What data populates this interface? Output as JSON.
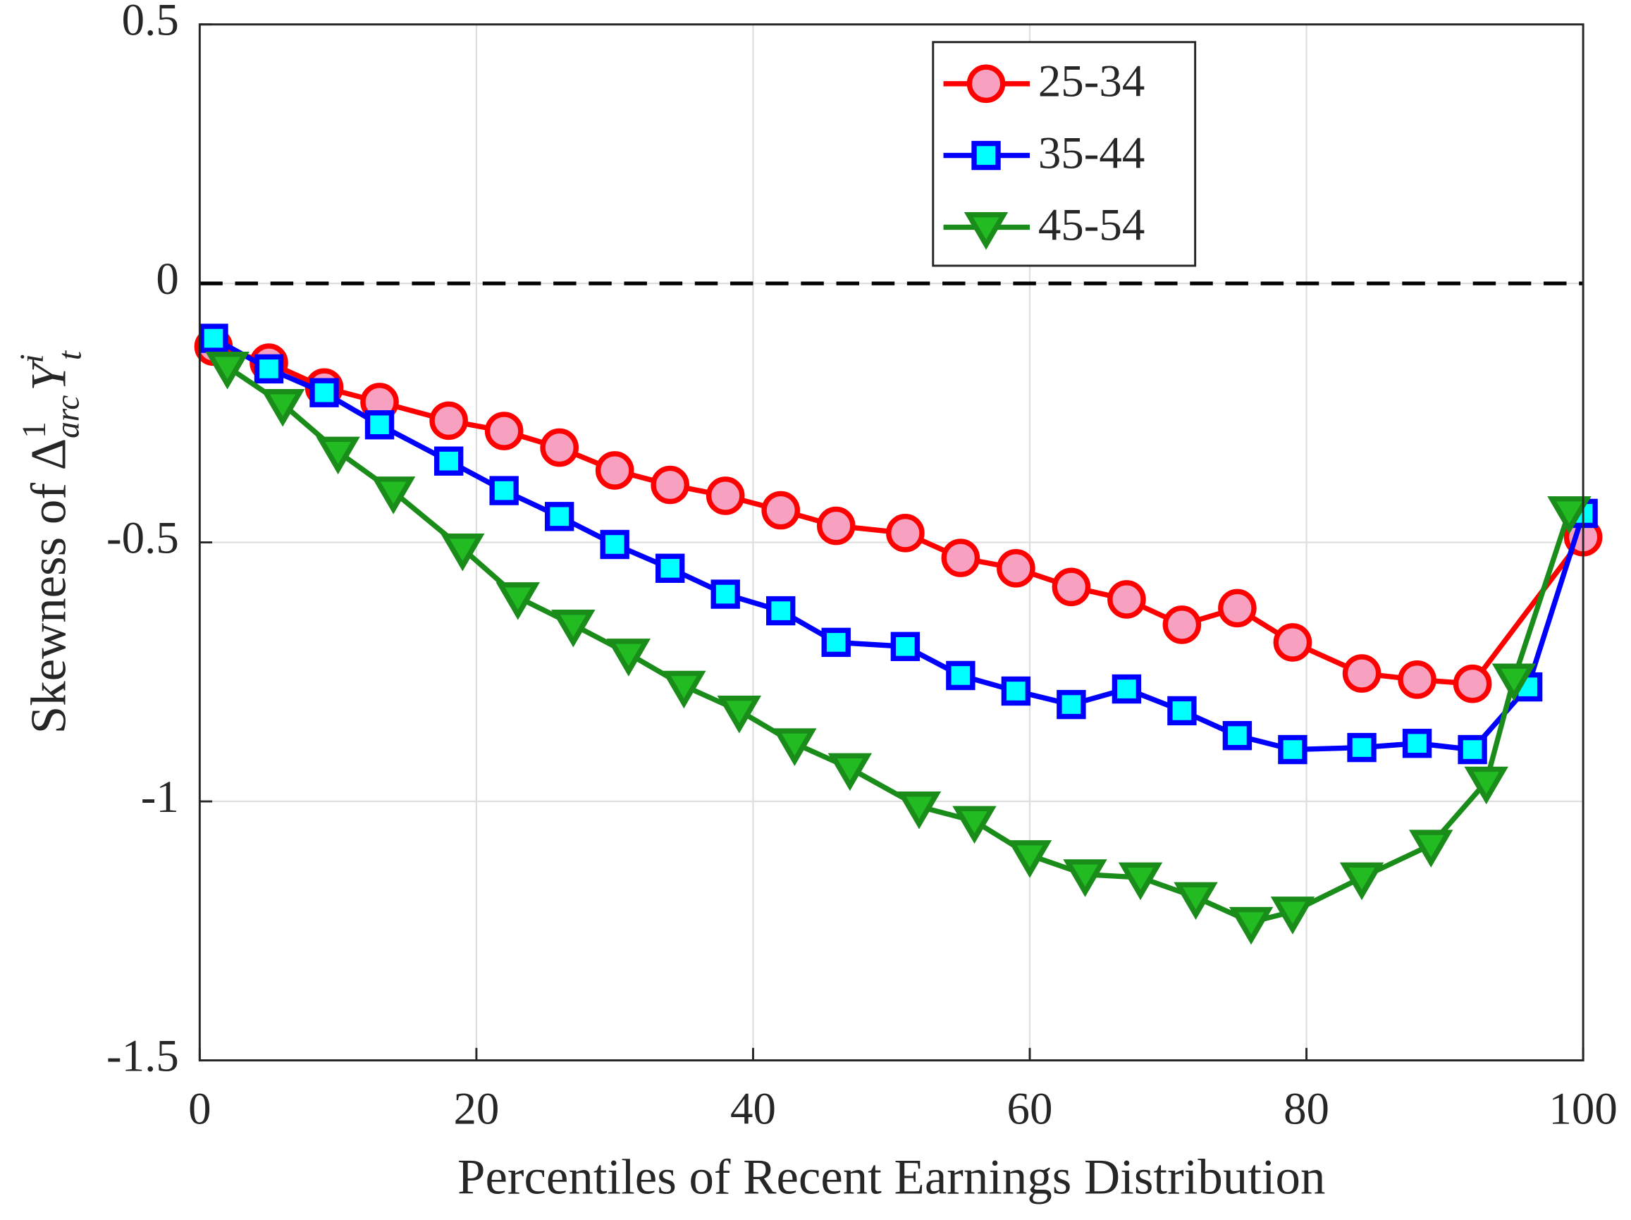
{
  "chart_data": {
    "type": "line",
    "xlabel": "Percentiles of Recent Earnings Distribution",
    "ylabel": [
      "Skewness of ",
      "Δ",
      "1",
      "arc",
      "Y",
      "i",
      "t"
    ],
    "xlim": [
      0,
      100
    ],
    "xticks": [
      0,
      20,
      40,
      60,
      80,
      100
    ],
    "ylim": [
      -1.5,
      0.5
    ],
    "yticks": [
      -1.5,
      -1,
      -0.5,
      0,
      0.5
    ],
    "grid": true,
    "reference_line": 0,
    "legend": "upper right",
    "series": [
      {
        "name": "25-34",
        "color": "#ff0000",
        "marker": "o",
        "marker_face": "#f7a0c0",
        "x": [
          1,
          5,
          9,
          13,
          18,
          22,
          26,
          30,
          34,
          38,
          42,
          46,
          51,
          55,
          59,
          63,
          67,
          71,
          75,
          79,
          84,
          88,
          92,
          100
        ],
        "values": [
          -0.122,
          -0.153,
          -0.201,
          -0.229,
          -0.265,
          -0.285,
          -0.317,
          -0.361,
          -0.389,
          -0.41,
          -0.438,
          -0.468,
          -0.482,
          -0.53,
          -0.55,
          -0.586,
          -0.61,
          -0.659,
          -0.627,
          -0.693,
          -0.753,
          -0.765,
          -0.773,
          -0.49
        ]
      },
      {
        "name": "35-44",
        "color": "#0000ff",
        "marker": "s",
        "marker_face": "#00ffff",
        "x": [
          1,
          5,
          9,
          13,
          18,
          22,
          26,
          30,
          34,
          38,
          42,
          46,
          51,
          55,
          59,
          63,
          67,
          71,
          75,
          79,
          84,
          88,
          92,
          96,
          100
        ],
        "values": [
          -0.106,
          -0.165,
          -0.211,
          -0.273,
          -0.343,
          -0.4,
          -0.45,
          -0.504,
          -0.55,
          -0.6,
          -0.632,
          -0.693,
          -0.701,
          -0.757,
          -0.787,
          -0.813,
          -0.783,
          -0.825,
          -0.873,
          -0.9,
          -0.896,
          -0.888,
          -0.9,
          -0.779,
          -0.444
        ]
      },
      {
        "name": "45-54",
        "color": "#1a8c1a",
        "marker": "v",
        "marker_face": "#22bb22",
        "x": [
          2,
          6,
          10,
          14,
          19,
          23,
          27,
          31,
          35,
          39,
          43,
          47,
          52,
          56,
          60,
          64,
          68,
          72,
          76,
          79,
          84,
          89,
          93,
          95,
          99
        ],
        "values": [
          -0.161,
          -0.233,
          -0.325,
          -0.402,
          -0.512,
          -0.606,
          -0.659,
          -0.715,
          -0.777,
          -0.825,
          -0.888,
          -0.936,
          -1.01,
          -1.038,
          -1.104,
          -1.141,
          -1.147,
          -1.185,
          -1.233,
          -1.213,
          -1.147,
          -1.084,
          -0.962,
          -0.763,
          -0.44
        ]
      }
    ]
  }
}
